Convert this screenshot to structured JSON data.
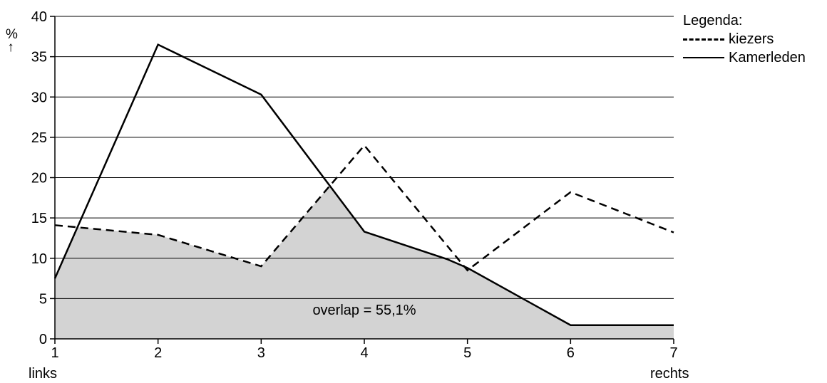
{
  "chart_data": {
    "type": "area",
    "x": [
      1,
      2,
      3,
      4,
      5,
      6,
      7
    ],
    "xlim": [
      1,
      7
    ],
    "ylim": [
      0,
      40
    ],
    "yticks": [
      0,
      5,
      10,
      15,
      20,
      25,
      30,
      35,
      40
    ],
    "ylabel": "%",
    "ylabel_arrow": "↑",
    "x_left_label": "links",
    "x_right_label": "rechts",
    "grid": true,
    "series": [
      {
        "name": "kiezers",
        "style": "dashed",
        "points": [
          [
            1,
            14.1
          ],
          [
            2,
            12.9
          ],
          [
            3,
            9.0
          ],
          [
            4,
            24.0
          ],
          [
            5,
            8.5
          ],
          [
            6,
            18.2
          ],
          [
            7,
            13.2
          ]
        ]
      },
      {
        "name": "Kamerleden",
        "style": "solid",
        "points": [
          [
            1,
            7.5
          ],
          [
            2,
            36.5
          ],
          [
            3,
            30.3
          ],
          [
            4,
            13.3
          ],
          [
            4.8,
            9.9
          ],
          [
            5,
            8.8
          ],
          [
            6,
            1.7
          ],
          [
            7,
            1.7
          ]
        ]
      }
    ],
    "overlap_fill_color": "#d3d3d3",
    "annotation": {
      "text": "overlap = 55,1%",
      "x": 4.0,
      "y": 3.0
    },
    "legend": {
      "title": "Legenda:",
      "placement": "top-right"
    }
  }
}
